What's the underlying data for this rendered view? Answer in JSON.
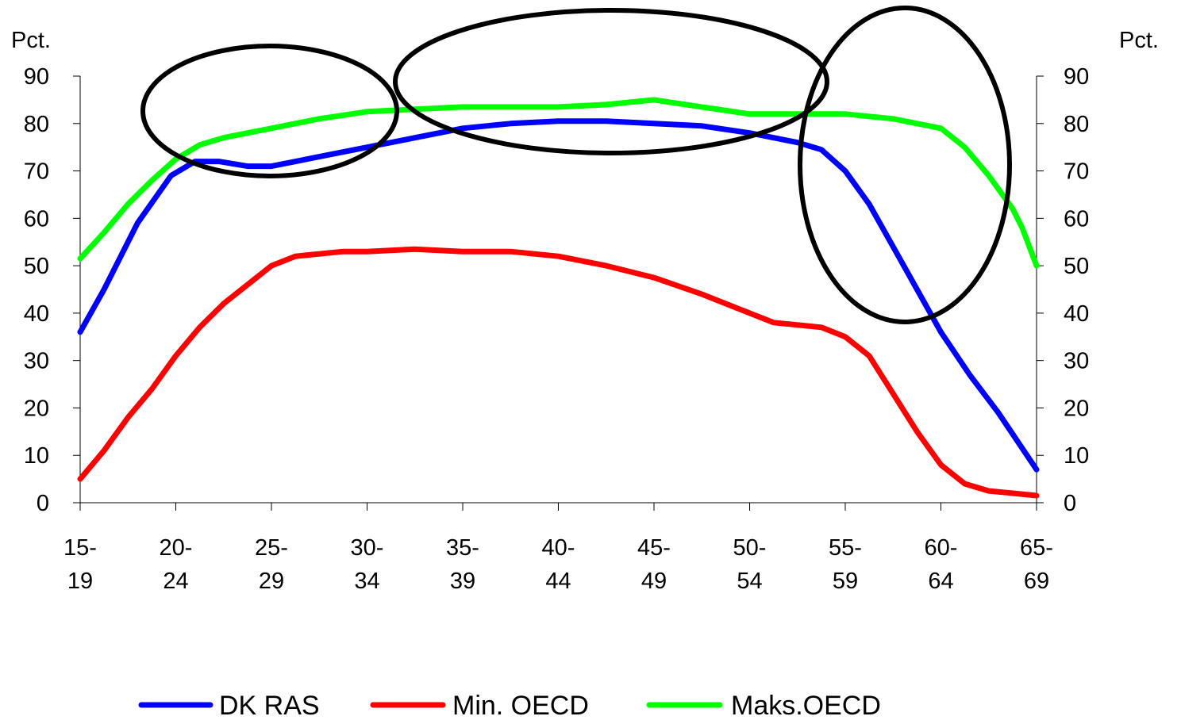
{
  "chart_data": {
    "type": "line",
    "y_unit_left": "Pct.",
    "y_unit_right": "Pct.",
    "ylim": [
      0,
      90
    ],
    "yticks": [
      "0",
      "10",
      "20",
      "30",
      "40",
      "50",
      "60",
      "70",
      "80",
      "90"
    ],
    "categories": [
      {
        "top": "15-",
        "bottom": "19"
      },
      {
        "top": "20-",
        "bottom": "24"
      },
      {
        "top": "25-",
        "bottom": "29"
      },
      {
        "top": "30-",
        "bottom": "34"
      },
      {
        "top": "35-",
        "bottom": "39"
      },
      {
        "top": "40-",
        "bottom": "44"
      },
      {
        "top": "45-",
        "bottom": "49"
      },
      {
        "top": "50-",
        "bottom": "54"
      },
      {
        "top": "55-",
        "bottom": "59"
      },
      {
        "top": "60-",
        "bottom": "64"
      },
      {
        "top": "65-",
        "bottom": "69"
      }
    ],
    "x_range": [
      0,
      10
    ],
    "series": [
      {
        "name": "DK RAS",
        "color": "#0000ff",
        "points": [
          [
            0,
            36
          ],
          [
            0.25,
            45
          ],
          [
            0.6,
            59
          ],
          [
            0.95,
            69
          ],
          [
            1.2,
            72
          ],
          [
            1.45,
            72
          ],
          [
            1.75,
            71
          ],
          [
            2,
            71
          ],
          [
            2.5,
            73
          ],
          [
            3,
            75
          ],
          [
            3.5,
            77
          ],
          [
            4,
            79
          ],
          [
            4.5,
            80
          ],
          [
            5,
            80.5
          ],
          [
            5.5,
            80.5
          ],
          [
            6,
            80
          ],
          [
            6.5,
            79.5
          ],
          [
            7,
            78
          ],
          [
            7.5,
            76
          ],
          [
            7.75,
            74.5
          ],
          [
            8,
            70
          ],
          [
            8.25,
            63
          ],
          [
            8.5,
            54
          ],
          [
            8.75,
            45
          ],
          [
            9,
            36
          ],
          [
            9.3,
            27
          ],
          [
            9.6,
            19
          ],
          [
            9.8,
            13
          ],
          [
            10,
            7
          ]
        ]
      },
      {
        "name": "Min. OECD",
        "color": "#ff0000",
        "points": [
          [
            0,
            5
          ],
          [
            0.25,
            11
          ],
          [
            0.5,
            18
          ],
          [
            0.75,
            24
          ],
          [
            1,
            31
          ],
          [
            1.25,
            37
          ],
          [
            1.5,
            42
          ],
          [
            1.75,
            46
          ],
          [
            2,
            50
          ],
          [
            2.25,
            52
          ],
          [
            2.75,
            53
          ],
          [
            3,
            53
          ],
          [
            3.5,
            53.5
          ],
          [
            4,
            53
          ],
          [
            4.5,
            53
          ],
          [
            5,
            52
          ],
          [
            5.5,
            50
          ],
          [
            6,
            47.5
          ],
          [
            6.5,
            44
          ],
          [
            7,
            40
          ],
          [
            7.25,
            38
          ],
          [
            7.75,
            37
          ],
          [
            8,
            35
          ],
          [
            8.25,
            31
          ],
          [
            8.5,
            23
          ],
          [
            8.75,
            15
          ],
          [
            9,
            8
          ],
          [
            9.25,
            4
          ],
          [
            9.5,
            2.5
          ],
          [
            9.75,
            2
          ],
          [
            10,
            1.5
          ]
        ]
      },
      {
        "name": "Maks.OECD",
        "color": "#00ff00",
        "points": [
          [
            0,
            51.5
          ],
          [
            0.25,
            57
          ],
          [
            0.5,
            63
          ],
          [
            0.75,
            68
          ],
          [
            1,
            72.5
          ],
          [
            1.25,
            75.5
          ],
          [
            1.5,
            77
          ],
          [
            1.75,
            78
          ],
          [
            2,
            79
          ],
          [
            2.5,
            81
          ],
          [
            3,
            82.5
          ],
          [
            3.5,
            83
          ],
          [
            4,
            83.5
          ],
          [
            4.5,
            83.5
          ],
          [
            5,
            83.5
          ],
          [
            5.5,
            84
          ],
          [
            6,
            85
          ],
          [
            6.5,
            83.5
          ],
          [
            7,
            82
          ],
          [
            7.5,
            82
          ],
          [
            8,
            82
          ],
          [
            8.5,
            81
          ],
          [
            9,
            79
          ],
          [
            9.25,
            75
          ],
          [
            9.5,
            69
          ],
          [
            9.75,
            62
          ],
          [
            9.85,
            58
          ],
          [
            10,
            50
          ]
        ]
      }
    ],
    "legend_position": "bottom-center"
  }
}
